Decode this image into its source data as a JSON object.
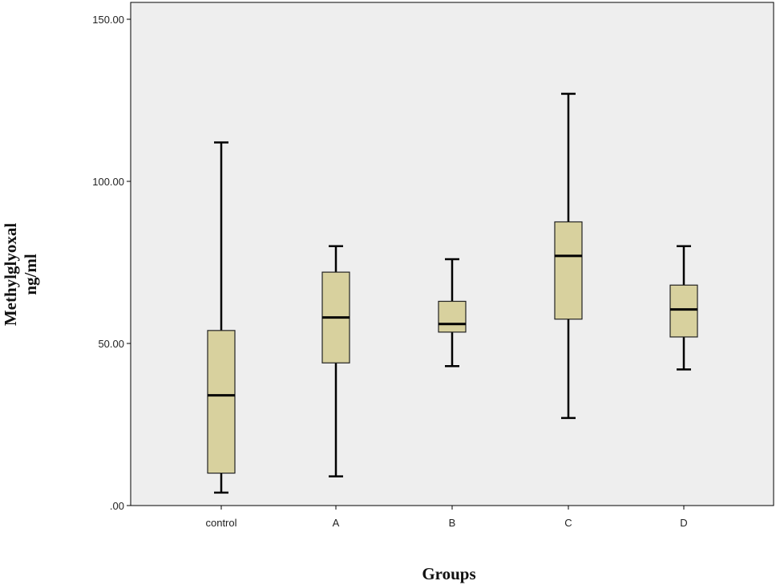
{
  "chart_data": {
    "type": "boxplot",
    "title": "",
    "xlabel": "Groups",
    "ylabel_lines": [
      "Methylglyoxal",
      "ng/ml"
    ],
    "ylim": [
      0,
      150
    ],
    "yticks": [
      {
        "value": 0,
        "label": ".00"
      },
      {
        "value": 50,
        "label": "50.00"
      },
      {
        "value": 100,
        "label": "100.00"
      },
      {
        "value": 150,
        "label": "150.00"
      }
    ],
    "categories": [
      "control",
      "A",
      "B",
      "C",
      "D"
    ],
    "boxes": [
      {
        "name": "control",
        "min": 4,
        "q1": 10,
        "median": 34,
        "q3": 54,
        "max": 112
      },
      {
        "name": "A",
        "min": 9,
        "q1": 44,
        "median": 58,
        "q3": 72,
        "max": 80
      },
      {
        "name": "B",
        "min": 43,
        "q1": 53.5,
        "median": 56,
        "q3": 63,
        "max": 76
      },
      {
        "name": "C",
        "min": 27,
        "q1": 57.5,
        "median": 77,
        "q3": 87.5,
        "max": 127
      },
      {
        "name": "D",
        "min": 42,
        "q1": 52,
        "median": 60.5,
        "q3": 68,
        "max": 80
      }
    ],
    "colors": {
      "plot_bg": "#eeeeee",
      "box_fill": "#d8d19e",
      "stroke": "#000000"
    }
  }
}
